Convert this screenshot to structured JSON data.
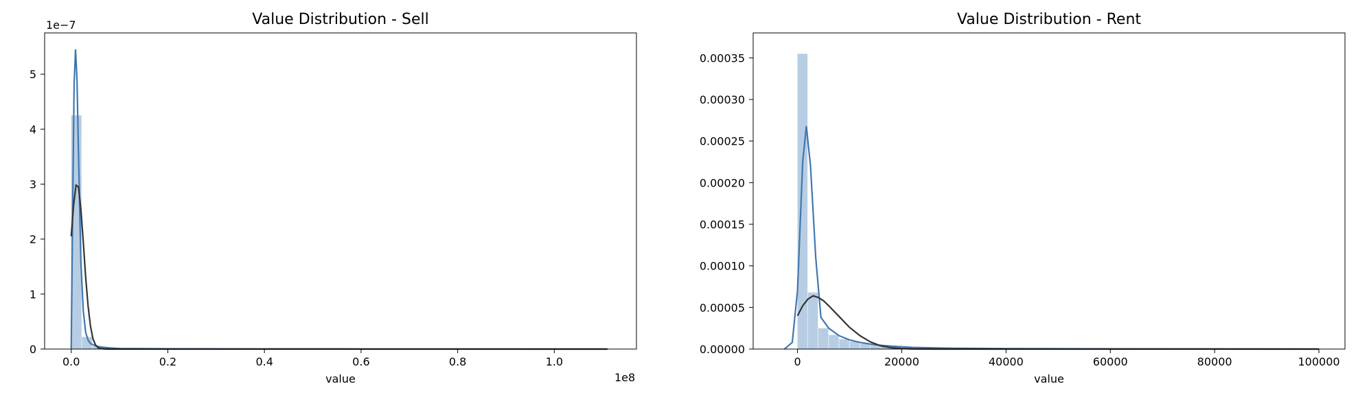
{
  "chart_data": [
    {
      "type": "histogram",
      "title": "Value Distribution - Sell",
      "xlabel": "value",
      "ylabel": "",
      "x_offset_label": "1e8",
      "y_offset_label": "1e−7",
      "xlim": [
        -0.055,
        1.17
      ],
      "ylim": [
        0,
        5.75
      ],
      "xticks": [
        0.0,
        0.2,
        0.4,
        0.6,
        0.8,
        1.0
      ],
      "xtick_labels": [
        "0.0",
        "0.2",
        "0.4",
        "0.6",
        "0.8",
        "1.0"
      ],
      "yticks": [
        0,
        1,
        2,
        3,
        4,
        5
      ],
      "ytick_labels": [
        "0",
        "1",
        "2",
        "3",
        "4",
        "5"
      ],
      "grid": false,
      "bin_width": 0.0222,
      "bins_left": [
        0.0,
        0.0222,
        0.0444,
        0.0666,
        0.0888,
        0.111,
        0.1332,
        0.1554
      ],
      "bins_density": [
        4.25,
        0.22,
        0.05,
        0.025,
        0.012,
        0.006,
        0.003,
        0.002
      ],
      "kde": {
        "x": [
          0.0,
          0.003,
          0.006,
          0.009,
          0.012,
          0.015,
          0.02,
          0.025,
          0.03,
          0.035,
          0.04,
          0.05,
          0.06,
          0.08,
          0.1,
          0.2,
          0.4,
          0.6,
          0.8,
          1.0,
          1.11
        ],
        "y": [
          0.0,
          2.5,
          4.8,
          5.45,
          4.9,
          3.6,
          1.6,
          0.7,
          0.3,
          0.16,
          0.1,
          0.06,
          0.04,
          0.02,
          0.01,
          0.005,
          0.002,
          0.001,
          0.001,
          0.0,
          0.0
        ]
      },
      "normal_fit": {
        "x": [
          0.0,
          0.005,
          0.01,
          0.015,
          0.02,
          0.025,
          0.03,
          0.035,
          0.04,
          0.045,
          0.05,
          0.055,
          0.06,
          0.07,
          0.08,
          0.1,
          0.2,
          0.4,
          0.6,
          0.8,
          1.0,
          1.11
        ],
        "y": [
          2.05,
          2.62,
          2.98,
          2.95,
          2.55,
          1.95,
          1.3,
          0.78,
          0.41,
          0.19,
          0.08,
          0.03,
          0.01,
          0.002,
          0.0,
          0.0,
          0.0,
          0.0,
          0.0,
          0.0,
          0.0,
          0.0
        ]
      },
      "colors": {
        "bars": "#4c82b8",
        "kde": "#3f77b0",
        "fit": "#333333"
      }
    },
    {
      "type": "histogram",
      "title": "Value Distribution - Rent",
      "xlabel": "value",
      "ylabel": "",
      "xlim": [
        -8500,
        105000
      ],
      "ylim": [
        0,
        0.00038
      ],
      "xticks": [
        0,
        20000,
        40000,
        60000,
        80000,
        100000
      ],
      "xtick_labels": [
        "0",
        "20000",
        "40000",
        "60000",
        "80000",
        "100000"
      ],
      "yticks": [
        0,
        5e-05,
        0.0001,
        0.00015,
        0.0002,
        0.00025,
        0.0003,
        0.00035
      ],
      "ytick_labels": [
        "0.00000",
        "0.00005",
        "0.00010",
        "0.00015",
        "0.00020",
        "0.00025",
        "0.00030",
        "0.00035"
      ],
      "grid": false,
      "bin_width": 2000,
      "bins_left": [
        0,
        2000,
        4000,
        6000,
        8000,
        10000,
        12000,
        14000,
        16000,
        18000,
        20000,
        22000,
        24000,
        26000,
        28000,
        30000,
        32000,
        34000,
        36000,
        38000,
        40000,
        42000,
        44000,
        46000
      ],
      "bins_density": [
        0.000355,
        6.8e-05,
        2.5e-05,
        1.7e-05,
        1.2e-05,
        9e-06,
        6.5e-06,
        4.5e-06,
        3.5e-06,
        2.5e-06,
        2e-06,
        1.5e-06,
        1.2e-06,
        1e-06,
        8e-07,
        7e-07,
        6e-07,
        5e-07,
        4e-07,
        3e-07,
        3e-07,
        2e-07,
        2e-07,
        1e-07
      ],
      "kde": {
        "x": [
          -2500,
          -1000,
          0,
          1000,
          1700,
          2500,
          3500,
          4500,
          6000,
          8000,
          10000,
          12000,
          15000,
          18000,
          22000,
          30000,
          40000,
          60000,
          80000,
          100000
        ],
        "y": [
          0.0,
          8e-06,
          7e-05,
          0.000225,
          0.000268,
          0.00022,
          0.00011,
          3.8e-05,
          2.5e-05,
          1.6e-05,
          1.1e-05,
          8e-06,
          5e-06,
          3.5e-06,
          2e-06,
          1e-06,
          5e-07,
          2e-07,
          1e-07,
          0.0
        ]
      },
      "normal_fit": {
        "x": [
          0,
          1000,
          2000,
          3000,
          4000,
          5000,
          6000,
          8000,
          10000,
          12000,
          14000,
          16000,
          18000,
          20000,
          22000,
          24000,
          26000,
          30000,
          40000,
          60000,
          80000,
          100000
        ],
        "y": [
          4e-05,
          5.2e-05,
          6e-05,
          6.4e-05,
          6.2e-05,
          5.8e-05,
          5.2e-05,
          3.9e-05,
          2.6e-05,
          1.6e-05,
          8.5e-06,
          3.8e-06,
          1.6e-06,
          6e-07,
          2e-07,
          1e-07,
          0.0,
          0.0,
          0.0,
          0.0,
          0.0,
          0.0
        ]
      },
      "colors": {
        "bars": "#4c82b8",
        "kde": "#3f77b0",
        "fit": "#333333"
      }
    }
  ]
}
